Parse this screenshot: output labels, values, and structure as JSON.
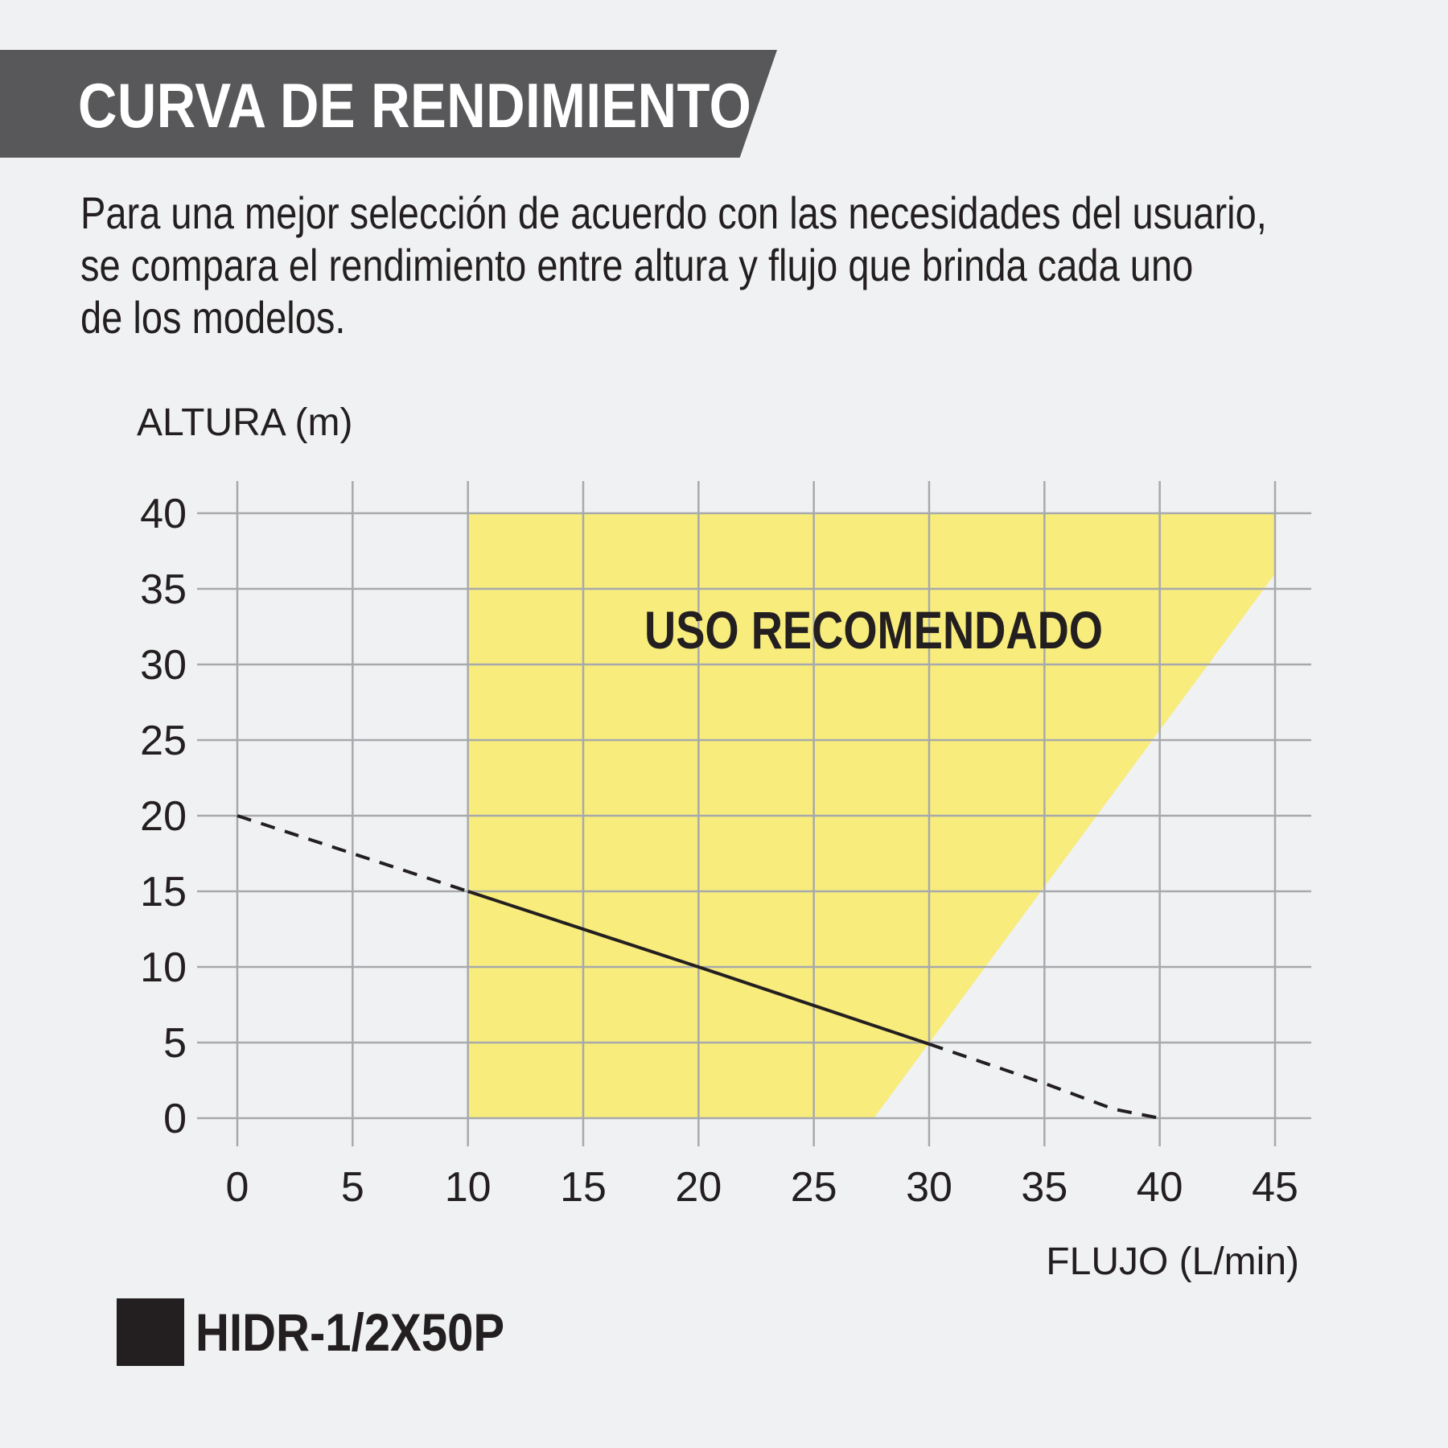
{
  "header": {
    "title": "CURVA DE RENDIMIENTO",
    "description_lines": [
      "Para una mejor selección de acuerdo con las necesidades del usuario,",
      "se compara el rendimiento entre altura y flujo que brinda cada uno",
      "de los modelos."
    ]
  },
  "colors": {
    "banner": "#58585a",
    "background": "#f0f1f2",
    "grid": "#a7a9ac",
    "recommended_zone": "#f7ec7c",
    "curve": "#231f20"
  },
  "chart_data": {
    "type": "line",
    "xlabel": "FLUJO (L/min)",
    "ylabel": "ALTURA (m)",
    "xlim": [
      0,
      45
    ],
    "ylim": [
      0,
      40
    ],
    "x_ticks": [
      0,
      5,
      10,
      15,
      20,
      25,
      30,
      35,
      40,
      45
    ],
    "y_ticks": [
      0,
      5,
      10,
      15,
      20,
      25,
      30,
      35,
      40
    ],
    "grid": true,
    "zone": {
      "label": "USO RECOMENDADO",
      "polygon": [
        [
          10,
          0
        ],
        [
          27.6,
          0
        ],
        [
          45,
          36
        ],
        [
          45,
          40
        ],
        [
          10,
          40
        ]
      ]
    },
    "series": [
      {
        "name": "HIDR-1/2X50P",
        "points": [
          [
            0,
            20
          ],
          [
            10,
            15
          ],
          [
            20,
            10
          ],
          [
            30,
            4.9
          ],
          [
            35,
            2.3
          ],
          [
            38,
            0.6
          ],
          [
            40,
            0
          ]
        ],
        "solid_range": [
          10,
          30
        ]
      }
    ],
    "legend": {
      "placement": "bottom-left",
      "entries": [
        "HIDR-1/2X50P"
      ]
    }
  }
}
